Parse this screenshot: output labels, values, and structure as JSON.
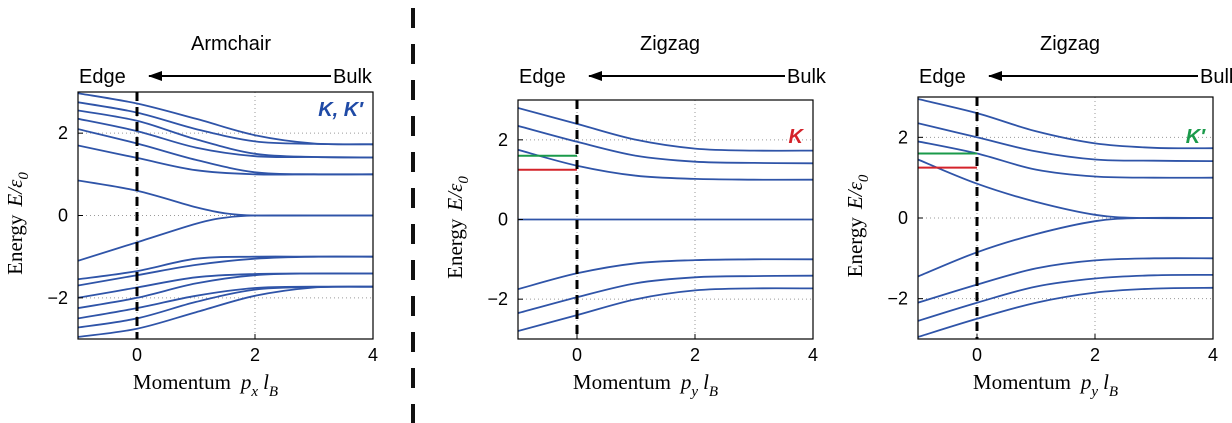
{
  "colors": {
    "curve": "#2f54a8",
    "dashed_divider": "#111111",
    "edge_marker": "#000000",
    "grid": "#9a9a9a",
    "label_blue": "#1f4aa6",
    "label_red": "#d4232a",
    "label_green": "#1a9a4a",
    "level_red": "#d4232a",
    "level_green": "#1a9a4a"
  },
  "chart_data": [
    {
      "type": "line",
      "title": "Armchair",
      "arrow_left": "Edge",
      "arrow_right": "Bulk",
      "tag": "K, K′",
      "tag_color": "label_blue",
      "ylabel_main": "Energy",
      "ylabel_symbol": "E/ε",
      "ylabel_sub": "0",
      "xlabel_main": "Momentum",
      "xlabel_symbol": "p",
      "xlabel_sub1": "x",
      "xlabel_mid": "l",
      "xlabel_sub2": "B",
      "xlim": [
        -1,
        4
      ],
      "ylim": [
        -3,
        3
      ],
      "x_ticks": [
        "0",
        "2",
        "4"
      ],
      "y_ticks": [
        "2",
        "0",
        "−2"
      ],
      "grid": "dotted",
      "edge_line_x": 0,
      "series": [
        {
          "x": [
            -1,
            0,
            1,
            2,
            3,
            4
          ],
          "y": [
            2.97,
            2.72,
            2.35,
            1.95,
            1.75,
            1.73
          ]
        },
        {
          "x": [
            -1,
            0,
            1,
            2,
            3,
            4
          ],
          "y": [
            2.75,
            2.5,
            2.1,
            1.8,
            1.74,
            1.73
          ]
        },
        {
          "x": [
            -1,
            0,
            1,
            2,
            3,
            4
          ],
          "y": [
            2.55,
            2.3,
            1.85,
            1.5,
            1.42,
            1.41
          ]
        },
        {
          "x": [
            -1,
            0,
            1,
            2,
            3,
            4
          ],
          "y": [
            2.35,
            2.05,
            1.65,
            1.44,
            1.42,
            1.41
          ]
        },
        {
          "x": [
            -1,
            0,
            1,
            2,
            3,
            4
          ],
          "y": [
            2.1,
            1.75,
            1.35,
            1.05,
            1.0,
            1.0
          ]
        },
        {
          "x": [
            -1,
            0,
            1,
            2,
            3,
            4
          ],
          "y": [
            1.7,
            1.4,
            1.1,
            1.0,
            1.0,
            1.0
          ]
        },
        {
          "x": [
            -1,
            0,
            1,
            1.5,
            2,
            3,
            4
          ],
          "y": [
            0.85,
            0.6,
            0.2,
            0.05,
            0.0,
            0.0,
            0.0
          ]
        },
        {
          "x": [
            -1,
            0,
            1,
            1.5,
            2,
            3,
            4
          ],
          "y": [
            -1.1,
            -0.65,
            -0.2,
            -0.05,
            0.0,
            0.0,
            0.0
          ]
        },
        {
          "x": [
            -1,
            0,
            1,
            2,
            3,
            4
          ],
          "y": [
            -1.55,
            -1.35,
            -1.05,
            -1.0,
            -1.0,
            -1.0
          ]
        },
        {
          "x": [
            -1,
            0,
            1,
            2,
            3,
            4
          ],
          "y": [
            -1.7,
            -1.45,
            -1.2,
            -1.05,
            -1.0,
            -1.0
          ]
        },
        {
          "x": [
            -1,
            0,
            1,
            2,
            3,
            4
          ],
          "y": [
            -2.0,
            -1.75,
            -1.5,
            -1.42,
            -1.41,
            -1.41
          ]
        },
        {
          "x": [
            -1,
            0,
            1,
            2,
            3,
            4
          ],
          "y": [
            -2.25,
            -2.0,
            -1.65,
            -1.45,
            -1.41,
            -1.41
          ]
        },
        {
          "x": [
            -1,
            0,
            1,
            2,
            3,
            4
          ],
          "y": [
            -2.5,
            -2.25,
            -1.95,
            -1.76,
            -1.73,
            -1.73
          ]
        },
        {
          "x": [
            -1,
            0,
            1,
            2,
            3,
            4
          ],
          "y": [
            -2.72,
            -2.5,
            -2.1,
            -1.8,
            -1.74,
            -1.73
          ]
        },
        {
          "x": [
            -1,
            0,
            1,
            2,
            3,
            4
          ],
          "y": [
            -2.95,
            -2.75,
            -2.35,
            -1.95,
            -1.75,
            -1.73
          ]
        }
      ],
      "levels": []
    },
    {
      "type": "line",
      "title": "Zigzag",
      "arrow_left": "Edge",
      "arrow_right": "Bulk",
      "tag": "K",
      "tag_color": "label_red",
      "ylabel_main": "Energy",
      "ylabel_symbol": "E/ε",
      "ylabel_sub": "0",
      "xlabel_main": "Momentum",
      "xlabel_symbol": "p",
      "xlabel_sub1": "y",
      "xlabel_mid": "l",
      "xlabel_sub2": "B",
      "xlim": [
        -1,
        4
      ],
      "ylim": [
        -3,
        3
      ],
      "x_ticks": [
        "0",
        "2",
        "4"
      ],
      "y_ticks": [
        "2",
        "0",
        "−2"
      ],
      "grid": "dotted",
      "edge_line_x": 0,
      "series": [
        {
          "x": [
            -1,
            0,
            1,
            2,
            3,
            4
          ],
          "y": [
            2.8,
            2.4,
            2.0,
            1.78,
            1.73,
            1.73
          ]
        },
        {
          "x": [
            -1,
            0,
            1,
            2,
            3,
            4
          ],
          "y": [
            2.35,
            1.95,
            1.6,
            1.45,
            1.42,
            1.41
          ]
        },
        {
          "x": [
            -1,
            0,
            1,
            2,
            3,
            4
          ],
          "y": [
            1.75,
            1.35,
            1.1,
            1.02,
            1.0,
            1.0
          ]
        },
        {
          "x": [
            -1,
            4
          ],
          "y": [
            0.0,
            0.0
          ]
        },
        {
          "x": [
            -1,
            0,
            1,
            2,
            3,
            4
          ],
          "y": [
            -1.75,
            -1.35,
            -1.1,
            -1.02,
            -1.0,
            -1.0
          ]
        },
        {
          "x": [
            -1,
            0,
            1,
            2,
            3,
            4
          ],
          "y": [
            -2.35,
            -1.95,
            -1.6,
            -1.45,
            -1.42,
            -1.41
          ]
        },
        {
          "x": [
            -1,
            0,
            1,
            2,
            3,
            4
          ],
          "y": [
            -2.8,
            -2.4,
            -2.0,
            -1.78,
            -1.73,
            -1.73
          ]
        }
      ],
      "levels": [
        {
          "y": 1.6,
          "x_end": 0,
          "color": "level_green"
        },
        {
          "y": 1.25,
          "x_end": 0,
          "color": "level_red"
        }
      ]
    },
    {
      "type": "line",
      "title": "Zigzag",
      "arrow_left": "Edge",
      "arrow_right": "Bulk",
      "tag": "K′",
      "tag_color": "label_green",
      "ylabel_main": "Energy",
      "ylabel_symbol": "E/ε",
      "ylabel_sub": "0",
      "xlabel_main": "Momentum",
      "xlabel_symbol": "p",
      "xlabel_sub1": "y",
      "xlabel_mid": "l",
      "xlabel_sub2": "B",
      "xlim": [
        -1,
        4
      ],
      "ylim": [
        -3,
        3
      ],
      "x_ticks": [
        "0",
        "2",
        "4"
      ],
      "y_ticks": [
        "2",
        "0",
        "−2"
      ],
      "grid": "dotted",
      "edge_line_x": 0,
      "series": [
        {
          "x": [
            -1,
            0,
            1,
            2,
            3,
            4
          ],
          "y": [
            2.95,
            2.6,
            2.15,
            1.85,
            1.74,
            1.73
          ]
        },
        {
          "x": [
            -1,
            0,
            1,
            2,
            3,
            4
          ],
          "y": [
            2.35,
            2.0,
            1.65,
            1.45,
            1.42,
            1.41
          ]
        },
        {
          "x": [
            -1,
            0,
            1,
            2,
            3,
            4
          ],
          "y": [
            1.9,
            1.6,
            1.2,
            1.03,
            1.0,
            1.0
          ]
        },
        {
          "x": [
            -1,
            0,
            1,
            2,
            2.8,
            4
          ],
          "y": [
            1.45,
            0.85,
            0.4,
            0.08,
            0.0,
            0.0
          ]
        },
        {
          "x": [
            -1,
            0,
            1,
            2,
            2.8,
            4
          ],
          "y": [
            -1.45,
            -0.85,
            -0.4,
            -0.08,
            0.0,
            0.0
          ]
        },
        {
          "x": [
            -1,
            0,
            1,
            2,
            3,
            4
          ],
          "y": [
            -2.1,
            -1.65,
            -1.25,
            -1.05,
            -1.0,
            -1.0
          ]
        },
        {
          "x": [
            -1,
            0,
            1,
            2,
            3,
            4
          ],
          "y": [
            -2.55,
            -2.1,
            -1.7,
            -1.5,
            -1.42,
            -1.41
          ]
        },
        {
          "x": [
            -1,
            0,
            1,
            2,
            3,
            4
          ],
          "y": [
            -2.95,
            -2.5,
            -2.1,
            -1.85,
            -1.75,
            -1.73
          ]
        }
      ],
      "levels": [
        {
          "y": 1.6,
          "x_end": 0,
          "color": "level_green"
        },
        {
          "y": 1.25,
          "x_end": 0,
          "color": "level_red"
        }
      ]
    }
  ]
}
